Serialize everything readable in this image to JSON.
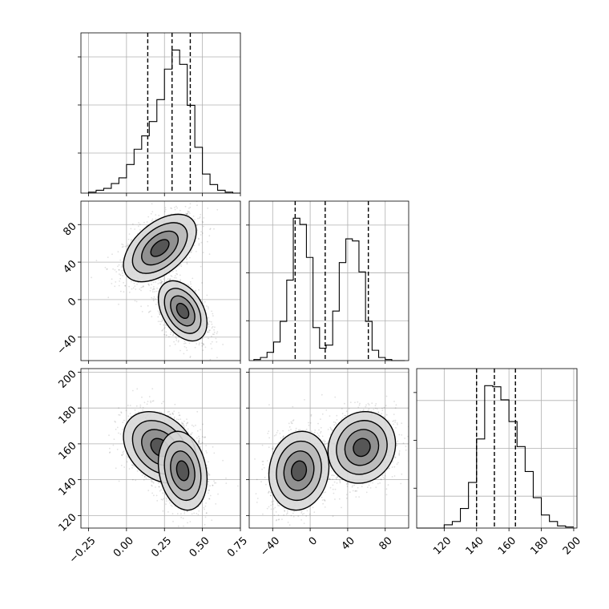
{
  "chart_data": [
    {
      "type": "histogram",
      "panel": "param1-marginal",
      "bins": [
        -0.25,
        -0.2,
        -0.15,
        -0.1,
        -0.05,
        0,
        0.05,
        0.1,
        0.15,
        0.2,
        0.25,
        0.3,
        0.35,
        0.4,
        0.45,
        0.5,
        0.55,
        0.6,
        0.65,
        0.7,
        0.75
      ],
      "counts": [
        1,
        3,
        5,
        10,
        16,
        30,
        46,
        60,
        75,
        98,
        130,
        150,
        135,
        92,
        48,
        20,
        9,
        3,
        1,
        0
      ],
      "quantiles": [
        0.14,
        0.3,
        0.42
      ],
      "xlim": [
        -0.3,
        0.75
      ]
    },
    {
      "type": "histogram",
      "panel": "param2-marginal",
      "bins": [
        -60,
        -53,
        -46,
        -39,
        -32,
        -25,
        -18,
        -11,
        -4,
        3,
        10,
        17,
        24,
        31,
        38,
        45,
        52,
        59,
        66,
        73,
        80,
        87,
        94,
        101
      ],
      "counts": [
        1,
        3,
        8,
        18,
        38,
        78,
        138,
        132,
        100,
        32,
        12,
        15,
        48,
        95,
        118,
        116,
        86,
        38,
        10,
        3,
        1,
        0,
        0
      ],
      "quantiles": [
        -16,
        16,
        62
      ],
      "xlim": [
        -65,
        105
      ]
    },
    {
      "type": "histogram",
      "panel": "param3-marginal",
      "bins": [
        100,
        105,
        110,
        115,
        120,
        125,
        130,
        135,
        140,
        145,
        150,
        155,
        160,
        165,
        170,
        175,
        180,
        185,
        190,
        195,
        200
      ],
      "counts": [
        0,
        0,
        0,
        0,
        3,
        6,
        18,
        42,
        82,
        131,
        130,
        118,
        98,
        75,
        52,
        28,
        12,
        6,
        2,
        1
      ],
      "quantiles": [
        140,
        151,
        164
      ],
      "xlim": [
        103,
        202
      ]
    },
    {
      "type": "contour-scatter",
      "panel": "param2-vs-param1",
      "xlim": [
        -0.3,
        0.75
      ],
      "ylim": [
        -65,
        105
      ],
      "modes": [
        {
          "cx": 0.22,
          "cy": 55,
          "sx": 0.12,
          "sy": 18,
          "rho": 0.5,
          "weight": 0.5
        },
        {
          "cx": 0.37,
          "cy": -12,
          "sx": 0.08,
          "sy": 16,
          "rho": -0.4,
          "weight": 0.5
        }
      ]
    },
    {
      "type": "contour-scatter",
      "panel": "param3-vs-param1",
      "xlim": [
        -0.3,
        0.75
      ],
      "ylim": [
        113,
        202
      ],
      "modes": [
        {
          "cx": 0.22,
          "cy": 158,
          "sx": 0.12,
          "sy": 10,
          "rho": -0.3,
          "weight": 0.5
        },
        {
          "cx": 0.37,
          "cy": 145,
          "sx": 0.08,
          "sy": 11,
          "rho": -0.2,
          "weight": 0.5
        }
      ]
    },
    {
      "type": "contour-scatter",
      "panel": "param3-vs-param2",
      "xlim": [
        -65,
        105
      ],
      "ylim": [
        113,
        202
      ],
      "modes": [
        {
          "cx": 55,
          "cy": 158,
          "sx": 18,
          "sy": 10,
          "rho": 0.1,
          "weight": 0.5
        },
        {
          "cx": -12,
          "cy": 145,
          "sx": 16,
          "sy": 11,
          "rho": 0.1,
          "weight": 0.5
        }
      ]
    }
  ],
  "ticks": {
    "param1": [
      "−0.25",
      "0.00",
      "0.25",
      "0.50",
      "0.75"
    ],
    "param1_values": [
      -0.25,
      0,
      0.25,
      0.5,
      0.75
    ],
    "param2": [
      "−40",
      "0",
      "40",
      "80"
    ],
    "param2_values": [
      -40,
      0,
      40,
      80
    ],
    "param3_y": [
      "120",
      "140",
      "160",
      "180",
      "200"
    ],
    "param3_y_values": [
      120,
      140,
      160,
      180,
      200
    ],
    "param3_x": [
      "120",
      "140",
      "160",
      "180",
      "200"
    ],
    "param3_x_values": [
      120,
      140,
      160,
      180,
      200
    ]
  },
  "grid": true
}
